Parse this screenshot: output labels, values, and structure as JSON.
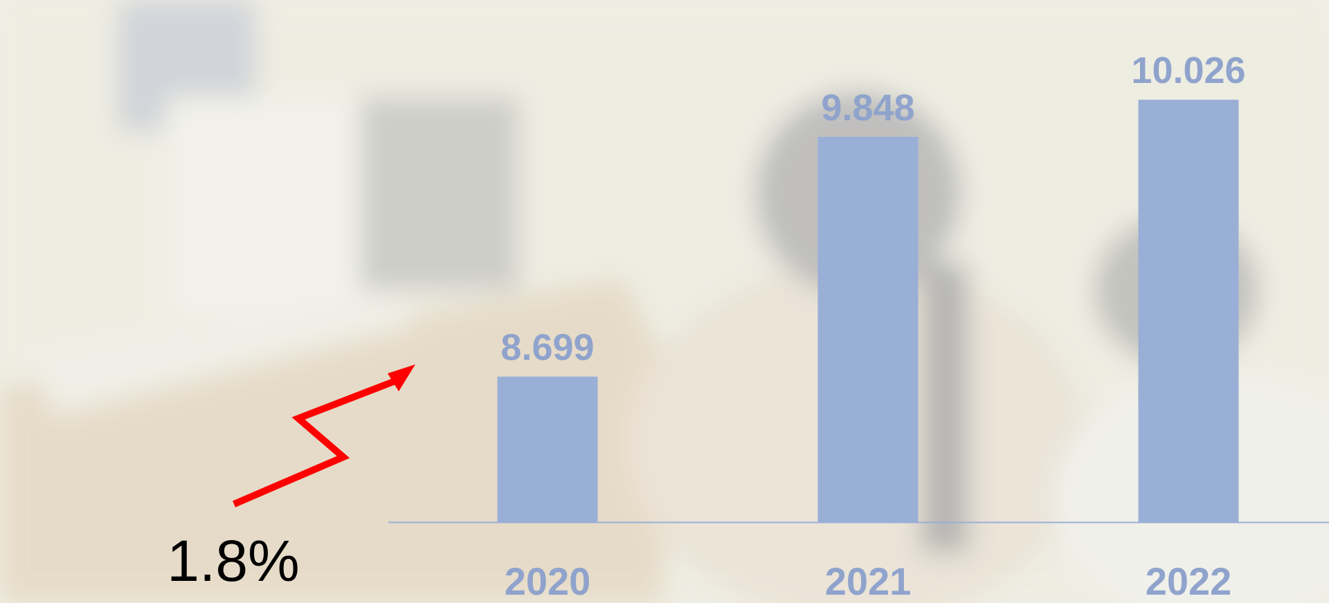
{
  "chart_data": {
    "type": "bar",
    "categories": [
      "2020",
      "2021",
      "2022"
    ],
    "values": [
      8699,
      9848,
      10026
    ],
    "value_labels": [
      "8.699",
      "9.848",
      "10.026"
    ],
    "color": "#9aafd6",
    "ylim": [
      8000,
      10500
    ],
    "annotation": "1.8%"
  }
}
